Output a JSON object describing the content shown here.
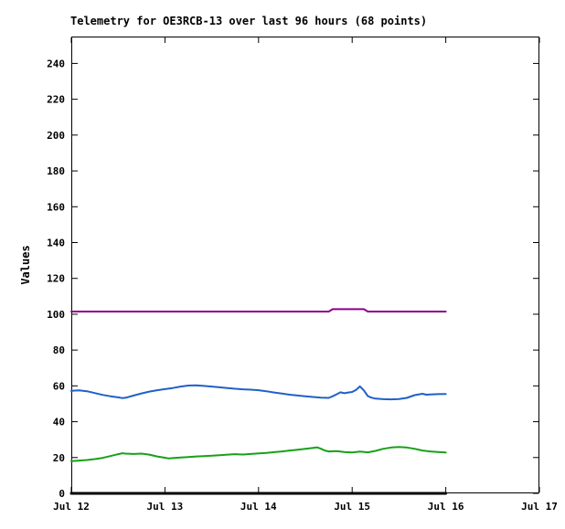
{
  "page": {
    "background": "#ffffff"
  },
  "chart_data": {
    "type": "line",
    "title": "Telemetry for OE3RCB-13 over last 96 hours (68 points)",
    "ylabel": "Values",
    "xlabel": "",
    "ylim": [
      0,
      255
    ],
    "xlim_hours": [
      0,
      120
    ],
    "grid": false,
    "legend_position": "none",
    "axis_color": "#000000",
    "text_color": "#000000",
    "y_ticks": [
      0,
      20,
      40,
      60,
      80,
      100,
      120,
      140,
      160,
      180,
      200,
      220,
      240
    ],
    "x_ticks": [
      {
        "hour": 0,
        "label": "Jul 12"
      },
      {
        "hour": 24,
        "label": "Jul 13"
      },
      {
        "hour": 48,
        "label": "Jul 14"
      },
      {
        "hour": 72,
        "label": "Jul 15"
      },
      {
        "hour": 96,
        "label": "Jul 16"
      },
      {
        "hour": 120,
        "label": "Jul 17"
      }
    ],
    "series": [
      {
        "name": "purple-line",
        "color": "#8b008b",
        "stroke_width": 2,
        "points_hours_values": [
          [
            0,
            101.5
          ],
          [
            24,
            101.5
          ],
          [
            48,
            101.5
          ],
          [
            66,
            101.5
          ],
          [
            67,
            102.8
          ],
          [
            75,
            102.8
          ],
          [
            76,
            101.5
          ],
          [
            96,
            101.5
          ]
        ]
      },
      {
        "name": "blue-line",
        "color": "#2060c8",
        "stroke_width": 2,
        "points_hours_values": [
          [
            0,
            57.2
          ],
          [
            2,
            57.5
          ],
          [
            4,
            57.0
          ],
          [
            6,
            56.0
          ],
          [
            8,
            55.0
          ],
          [
            10,
            54.2
          ],
          [
            12,
            53.6
          ],
          [
            13,
            53.2
          ],
          [
            14,
            53.4
          ],
          [
            16,
            54.6
          ],
          [
            18,
            55.8
          ],
          [
            20,
            56.8
          ],
          [
            22,
            57.6
          ],
          [
            24,
            58.2
          ],
          [
            26,
            58.8
          ],
          [
            28,
            59.6
          ],
          [
            30,
            60.2
          ],
          [
            32,
            60.3
          ],
          [
            34,
            60.0
          ],
          [
            36,
            59.6
          ],
          [
            38,
            59.2
          ],
          [
            40,
            58.8
          ],
          [
            42,
            58.4
          ],
          [
            44,
            58.1
          ],
          [
            46,
            57.9
          ],
          [
            48,
            57.6
          ],
          [
            50,
            57.0
          ],
          [
            52,
            56.3
          ],
          [
            54,
            55.7
          ],
          [
            56,
            55.1
          ],
          [
            58,
            54.6
          ],
          [
            60,
            54.2
          ],
          [
            62,
            53.8
          ],
          [
            64,
            53.4
          ],
          [
            66,
            53.3
          ],
          [
            67,
            54.2
          ],
          [
            68,
            55.3
          ],
          [
            69,
            56.4
          ],
          [
            70,
            55.9
          ],
          [
            71,
            56.3
          ],
          [
            72,
            56.6
          ],
          [
            73,
            57.8
          ],
          [
            74,
            59.7
          ],
          [
            75,
            57.5
          ],
          [
            76,
            54.3
          ],
          [
            77,
            53.4
          ],
          [
            78,
            52.9
          ],
          [
            80,
            52.6
          ],
          [
            82,
            52.5
          ],
          [
            84,
            52.7
          ],
          [
            86,
            53.3
          ],
          [
            88,
            54.8
          ],
          [
            90,
            55.6
          ],
          [
            91,
            55.1
          ],
          [
            92,
            55.2
          ],
          [
            94,
            55.4
          ],
          [
            96,
            55.5
          ]
        ]
      },
      {
        "name": "green-line",
        "color": "#18a018",
        "stroke_width": 2,
        "points_hours_values": [
          [
            0,
            18.0
          ],
          [
            2,
            18.3
          ],
          [
            4,
            18.6
          ],
          [
            6,
            19.1
          ],
          [
            8,
            19.8
          ],
          [
            10,
            20.8
          ],
          [
            12,
            21.9
          ],
          [
            13,
            22.4
          ],
          [
            14,
            22.2
          ],
          [
            16,
            22.0
          ],
          [
            18,
            22.2
          ],
          [
            20,
            21.6
          ],
          [
            22,
            20.6
          ],
          [
            24,
            19.9
          ],
          [
            25,
            19.5
          ],
          [
            26,
            19.7
          ],
          [
            28,
            20.0
          ],
          [
            30,
            20.3
          ],
          [
            32,
            20.6
          ],
          [
            34,
            20.8
          ],
          [
            36,
            21.0
          ],
          [
            38,
            21.3
          ],
          [
            40,
            21.6
          ],
          [
            42,
            21.9
          ],
          [
            44,
            21.7
          ],
          [
            46,
            22.0
          ],
          [
            48,
            22.3
          ],
          [
            50,
            22.6
          ],
          [
            52,
            23.0
          ],
          [
            54,
            23.4
          ],
          [
            56,
            23.9
          ],
          [
            58,
            24.4
          ],
          [
            60,
            24.9
          ],
          [
            62,
            25.4
          ],
          [
            63,
            25.7
          ],
          [
            64,
            24.9
          ],
          [
            65,
            23.9
          ],
          [
            66,
            23.4
          ],
          [
            68,
            23.6
          ],
          [
            70,
            23.1
          ],
          [
            72,
            22.8
          ],
          [
            73,
            23.1
          ],
          [
            74,
            23.3
          ],
          [
            76,
            22.9
          ],
          [
            78,
            23.7
          ],
          [
            80,
            24.9
          ],
          [
            82,
            25.6
          ],
          [
            84,
            25.9
          ],
          [
            86,
            25.6
          ],
          [
            88,
            24.9
          ],
          [
            90,
            23.9
          ],
          [
            92,
            23.4
          ],
          [
            94,
            23.1
          ],
          [
            96,
            22.8
          ]
        ]
      },
      {
        "name": "black-baseline",
        "color": "#000000",
        "stroke_width": 3,
        "points_hours_values": [
          [
            0,
            0
          ],
          [
            96,
            0
          ]
        ]
      }
    ]
  }
}
